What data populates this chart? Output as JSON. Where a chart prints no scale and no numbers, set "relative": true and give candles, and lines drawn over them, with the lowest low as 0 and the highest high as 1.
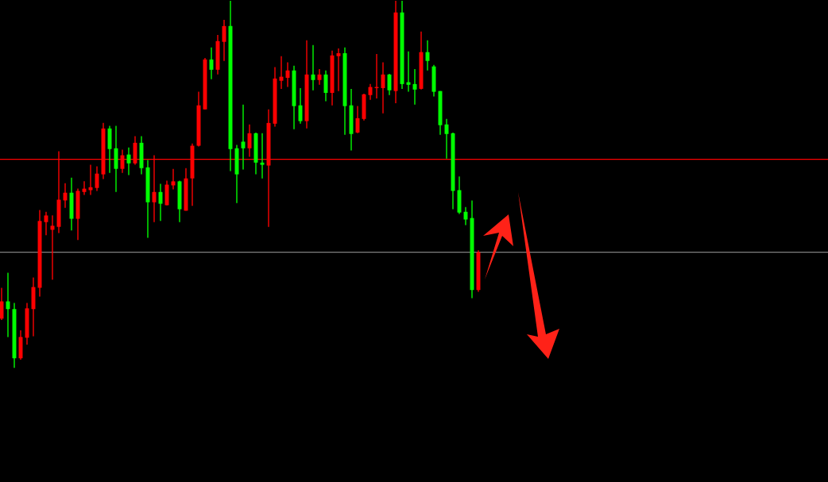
{
  "chart_data": {
    "type": "candlestick",
    "relative": true,
    "categories": [
      null,
      null,
      null,
      null,
      null,
      null,
      null,
      null,
      null,
      null,
      null,
      null,
      null,
      null,
      null,
      null,
      null,
      null,
      null,
      null,
      null,
      null,
      null,
      null,
      null,
      null,
      null,
      null,
      null,
      null,
      null,
      null,
      null,
      null,
      null,
      null,
      null,
      null,
      null,
      null,
      null,
      null,
      null,
      null,
      null,
      null,
      null,
      null,
      null,
      null,
      null,
      null,
      null,
      null,
      null,
      null,
      null,
      null,
      null,
      null,
      null,
      null,
      null,
      null,
      null,
      null,
      null,
      null,
      null,
      null,
      null,
      null,
      null,
      null,
      null,
      null
    ],
    "ohlc": [
      [
        0.134,
        0.218,
        0.13,
        0.181
      ],
      [
        0.181,
        0.259,
        0.084,
        0.16
      ],
      [
        0.16,
        0.177,
        0.0,
        0.026
      ],
      [
        0.026,
        0.102,
        0.022,
        0.084
      ],
      [
        0.082,
        0.177,
        0.063,
        0.162
      ],
      [
        0.16,
        0.246,
        0.086,
        0.22
      ],
      [
        0.218,
        0.43,
        0.194,
        0.4
      ],
      [
        0.397,
        0.425,
        0.361,
        0.415
      ],
      [
        0.376,
        0.415,
        0.24,
        0.387
      ],
      [
        0.384,
        0.59,
        0.367,
        0.458
      ],
      [
        0.456,
        0.503,
        0.436,
        0.477
      ],
      [
        0.477,
        0.518,
        0.374,
        0.406
      ],
      [
        0.406,
        0.488,
        0.348,
        0.482
      ],
      [
        0.479,
        0.508,
        0.471,
        0.488
      ],
      [
        0.484,
        0.553,
        0.471,
        0.492
      ],
      [
        0.49,
        0.549,
        0.482,
        0.529
      ],
      [
        0.527,
        0.667,
        0.514,
        0.652
      ],
      [
        0.652,
        0.659,
        0.531,
        0.596
      ],
      [
        0.598,
        0.659,
        0.479,
        0.542
      ],
      [
        0.542,
        0.594,
        0.531,
        0.579
      ],
      [
        0.581,
        0.6,
        0.525,
        0.557
      ],
      [
        0.557,
        0.631,
        0.553,
        0.613
      ],
      [
        0.613,
        0.631,
        0.527,
        0.544
      ],
      [
        0.546,
        0.566,
        0.354,
        0.451
      ],
      [
        0.451,
        0.579,
        0.397,
        0.479
      ],
      [
        0.479,
        0.501,
        0.4,
        0.447
      ],
      [
        0.443,
        0.51,
        0.443,
        0.499
      ],
      [
        0.497,
        0.542,
        0.486,
        0.508
      ],
      [
        0.508,
        0.51,
        0.397,
        0.432
      ],
      [
        0.428,
        0.544,
        0.428,
        0.516
      ],
      [
        0.516,
        0.611,
        0.441,
        0.605
      ],
      [
        0.605,
        0.752,
        0.603,
        0.715
      ],
      [
        0.704,
        0.844,
        0.704,
        0.84
      ],
      [
        0.84,
        0.873,
        0.786,
        0.812
      ],
      [
        0.812,
        0.907,
        0.799,
        0.89
      ],
      [
        0.888,
        0.948,
        0.836,
        0.931
      ],
      [
        0.931,
        1.0,
        0.536,
        0.596
      ],
      [
        0.598,
        0.607,
        0.449,
        0.527
      ],
      [
        0.616,
        0.717,
        0.54,
        0.598
      ],
      [
        0.598,
        0.663,
        0.575,
        0.639
      ],
      [
        0.639,
        0.641,
        0.527,
        0.559
      ],
      [
        0.559,
        0.639,
        0.516,
        0.553
      ],
      [
        0.551,
        0.704,
        0.384,
        0.667
      ],
      [
        0.665,
        0.819,
        0.657,
        0.788
      ],
      [
        0.782,
        0.849,
        0.76,
        0.793
      ],
      [
        0.79,
        0.832,
        0.765,
        0.81
      ],
      [
        0.81,
        0.823,
        0.65,
        0.713
      ],
      [
        0.715,
        0.762,
        0.665,
        0.672
      ],
      [
        0.672,
        0.892,
        0.652,
        0.799
      ],
      [
        0.799,
        0.879,
        0.756,
        0.784
      ],
      [
        0.784,
        0.814,
        0.771,
        0.799
      ],
      [
        0.799,
        0.81,
        0.726,
        0.749
      ],
      [
        0.749,
        0.864,
        0.715,
        0.851
      ],
      [
        0.849,
        0.87,
        0.754,
        0.857
      ],
      [
        0.857,
        0.873,
        0.635,
        0.713
      ],
      [
        0.715,
        0.76,
        0.592,
        0.637
      ],
      [
        0.641,
        0.713,
        0.639,
        0.68
      ],
      [
        0.678,
        0.747,
        0.674,
        0.745
      ],
      [
        0.743,
        0.773,
        0.73,
        0.765
      ],
      [
        0.762,
        0.855,
        0.734,
        0.765
      ],
      [
        0.762,
        0.832,
        0.693,
        0.799
      ],
      [
        0.799,
        0.801,
        0.743,
        0.756
      ],
      [
        0.754,
        1.0,
        0.721,
        0.968
      ],
      [
        0.968,
        1.0,
        0.76,
        0.773
      ],
      [
        0.778,
        0.862,
        0.752,
        0.771
      ],
      [
        0.773,
        0.814,
        0.717,
        0.758
      ],
      [
        0.76,
        0.916,
        0.758,
        0.86
      ],
      [
        0.86,
        0.892,
        0.81,
        0.836
      ],
      [
        0.821,
        0.825,
        0.739,
        0.752
      ],
      [
        0.754,
        0.754,
        0.635,
        0.661
      ],
      [
        0.663,
        0.678,
        0.57,
        0.637
      ],
      [
        0.639,
        0.641,
        0.432,
        0.482
      ],
      [
        0.484,
        0.521,
        0.419,
        0.423
      ],
      [
        0.425,
        0.438,
        0.389,
        0.404
      ],
      [
        0.408,
        0.456,
        0.19,
        0.212
      ],
      [
        0.212,
        0.32,
        0.207,
        0.315
      ]
    ],
    "colors": [
      "#ff0000",
      "#00ff00",
      "#00ff00",
      "#ff0000",
      "#ff0000",
      "#ff0000",
      "#ff0000",
      "#ff0000",
      "#ff0000",
      "#ff0000",
      "#ff0000",
      "#00ff00",
      "#ff0000",
      "#ff0000",
      "#ff0000",
      "#ff0000",
      "#ff0000",
      "#00ff00",
      "#00ff00",
      "#ff0000",
      "#00ff00",
      "#ff0000",
      "#00ff00",
      "#00ff00",
      "#ff0000",
      "#00ff00",
      "#ff0000",
      "#ff0000",
      "#00ff00",
      "#ff0000",
      "#ff0000",
      "#ff0000",
      "#ff0000",
      "#00ff00",
      "#ff0000",
      "#ff0000",
      "#00ff00",
      "#00ff00",
      "#00ff00",
      "#ff0000",
      "#00ff00",
      "#00ff00",
      "#ff0000",
      "#ff0000",
      "#ff0000",
      "#ff0000",
      "#00ff00",
      "#00ff00",
      "#ff0000",
      "#00ff00",
      "#ff0000",
      "#00ff00",
      "#ff0000",
      "#ff0000",
      "#00ff00",
      "#00ff00",
      "#ff0000",
      "#ff0000",
      "#ff0000",
      "#ff0000",
      "#ff0000",
      "#00ff00",
      "#ff0000",
      "#00ff00",
      "#00ff00",
      "#00ff00",
      "#ff0000",
      "#00ff00",
      "#00ff00",
      "#00ff00",
      "#00ff00",
      "#00ff00",
      "#00ff00",
      "#00ff00",
      "#00ff00",
      "#ff0000"
    ],
    "ref_lines": [
      {
        "axis": "y",
        "value": 0.568,
        "color": "#ff0000",
        "line_style": "solid"
      },
      {
        "axis": "y",
        "value": 0.315,
        "color": "#808080",
        "line_style": "solid"
      }
    ]
  }
}
